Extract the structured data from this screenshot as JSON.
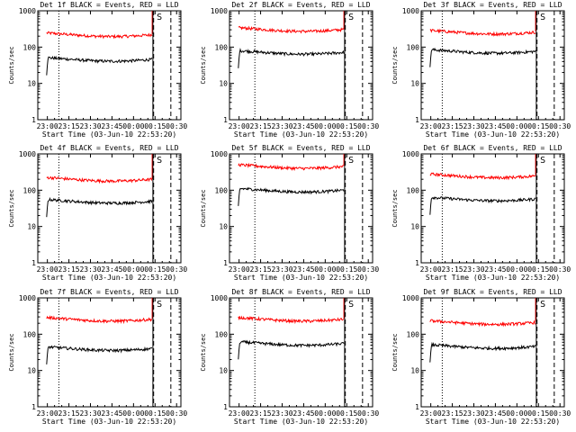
{
  "chart_data": {
    "type": "line",
    "xlabel": "Start Time (03-Jun-10 22:53:20)",
    "ylabel": "Counts/sec",
    "x_ticks": [
      "23:00",
      "23:15",
      "23:30",
      "23:45",
      "00:00",
      "00:15",
      "00:30"
    ],
    "x_tick_minutes": [
      0,
      15,
      30,
      45,
      60,
      75,
      90
    ],
    "xlim_minutes": [
      -6.67,
      93
    ],
    "y_scale": "log",
    "ylim": [
      1,
      1000
    ],
    "y_ticks": [
      "1",
      "10",
      "100",
      "1000"
    ],
    "y_tick_values": [
      1,
      10,
      100,
      1000
    ],
    "corner_label": "S",
    "colors": {
      "events": "#000000",
      "lld": "#ff0000",
      "frame": "#000000",
      "background": "#ffffff"
    },
    "panels": [
      {
        "title": "Det 1f BLACK = Events, RED = LLD",
        "events": 48,
        "lld": 230,
        "dotted_x_minutes": 8,
        "dashed_x_minutes": [
          74,
          86
        ],
        "solid_x_minutes": 73
      },
      {
        "title": "Det 2f BLACK = Events, RED = LLD",
        "events": 75,
        "lld": 320,
        "dotted_x_minutes": 11,
        "dashed_x_minutes": [
          74,
          86
        ],
        "solid_x_minutes": 73
      },
      {
        "title": "Det 3f BLACK = Events, RED = LLD",
        "events": 80,
        "lld": 270,
        "dotted_x_minutes": 8,
        "dashed_x_minutes": [
          74,
          86
        ],
        "solid_x_minutes": 73
      },
      {
        "title": "Det 4f BLACK = Events, RED = LLD",
        "events": 52,
        "lld": 210,
        "dotted_x_minutes": 8,
        "dashed_x_minutes": [
          74,
          86
        ],
        "solid_x_minutes": 73
      },
      {
        "title": "Det 5f BLACK = Events, RED = LLD",
        "events": 105,
        "lld": 470,
        "dotted_x_minutes": 11,
        "dashed_x_minutes": [
          74,
          86
        ],
        "solid_x_minutes": 73
      },
      {
        "title": "Det 6f BLACK = Events, RED = LLD",
        "events": 60,
        "lld": 260,
        "dotted_x_minutes": 8,
        "dashed_x_minutes": [
          74,
          86
        ],
        "solid_x_minutes": 73
      },
      {
        "title": "Det 7f BLACK = Events, RED = LLD",
        "events": 42,
        "lld": 270,
        "dotted_x_minutes": 8,
        "dashed_x_minutes": [
          74,
          86
        ],
        "solid_x_minutes": 73
      },
      {
        "title": "Det 8f BLACK = Events, RED = LLD",
        "events": 58,
        "lld": 270,
        "dotted_x_minutes": 11,
        "dashed_x_minutes": [
          74,
          86
        ],
        "solid_x_minutes": 73
      },
      {
        "title": "Det 9f BLACK = Events, RED = LLD",
        "events": 48,
        "lld": 220,
        "dotted_x_minutes": 8,
        "dashed_x_minutes": [
          74,
          86
        ],
        "solid_x_minutes": 73
      }
    ]
  }
}
